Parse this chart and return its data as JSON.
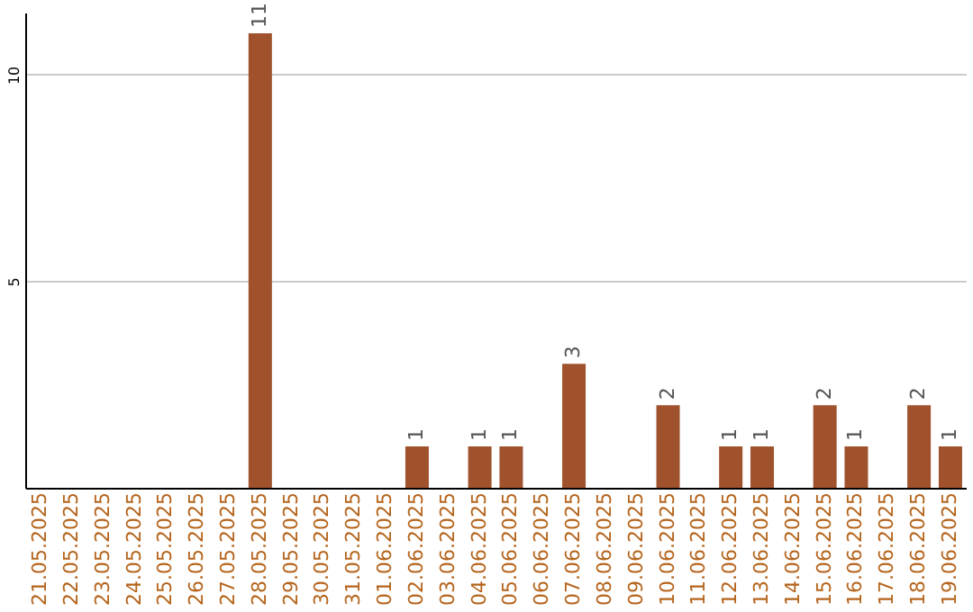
{
  "chart_data": {
    "type": "bar",
    "categories": [
      "21.05.2025",
      "22.05.2025",
      "23.05.2025",
      "24.05.2025",
      "25.05.2025",
      "26.05.2025",
      "27.05.2025",
      "28.05.2025",
      "29.05.2025",
      "30.05.2025",
      "31.05.2025",
      "01.06.2025",
      "02.06.2025",
      "03.06.2025",
      "04.06.2025",
      "05.06.2025",
      "06.06.2025",
      "07.06.2025",
      "08.06.2025",
      "09.06.2025",
      "10.06.2025",
      "11.06.2025",
      "12.06.2025",
      "13.06.2025",
      "14.06.2025",
      "15.06.2025",
      "16.06.2025",
      "17.06.2025",
      "18.06.2025",
      "19.06.2025"
    ],
    "values": [
      0,
      0,
      0,
      0,
      0,
      0,
      0,
      11,
      0,
      0,
      0,
      0,
      1,
      0,
      1,
      1,
      0,
      3,
      0,
      0,
      2,
      0,
      1,
      1,
      0,
      2,
      1,
      0,
      2,
      1
    ],
    "value_labels": [
      null,
      null,
      null,
      null,
      null,
      null,
      null,
      "11",
      null,
      null,
      null,
      null,
      "1",
      null,
      "1",
      "1",
      null,
      "3",
      null,
      null,
      "2",
      null,
      "1",
      "1",
      null,
      "2",
      "1",
      null,
      "2",
      "1"
    ],
    "color": "#a0522d",
    "ylim": [
      0,
      11.5
    ],
    "yticks": [
      5,
      10
    ],
    "grid": "y"
  }
}
